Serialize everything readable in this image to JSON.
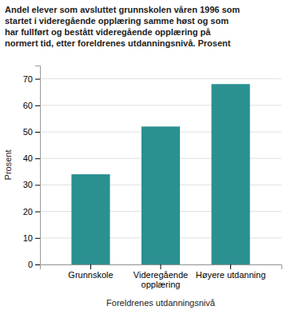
{
  "chart_data": {
    "type": "bar",
    "title": "Andel elever som avsluttet grunnskolen våren 1996 som\nstartet i videregående opplæring samme høst og som\nhar fullført og bestått videregående opplæring på\nnormert tid, etter foreldrenes utdanningsnivå. Prosent",
    "categories": [
      "Grunnskole",
      "Videregående\nopplæring",
      "Høyere utdanning"
    ],
    "values": [
      34,
      52,
      68
    ],
    "color": "#2a9090",
    "ylabel": "Prosent",
    "xlabel": "Foreldrenes utdanningsnivå",
    "ylim": [
      0,
      75
    ],
    "yticks": [
      0,
      10,
      20,
      30,
      40,
      50,
      60,
      70
    ],
    "grid": true
  }
}
